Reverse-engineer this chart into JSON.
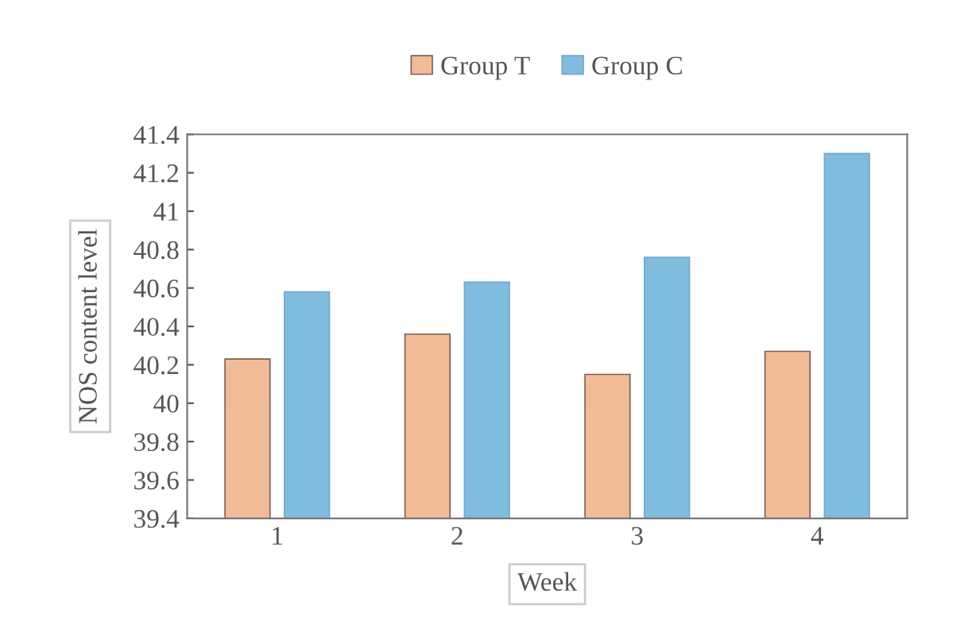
{
  "chart_data": {
    "type": "bar",
    "xlabel": "Week",
    "ylabel": "NOS content level",
    "categories": [
      "1",
      "2",
      "3",
      "4"
    ],
    "series": [
      {
        "name": "Group T",
        "color": "#f2bb98",
        "values": [
          40.23,
          40.36,
          40.15,
          40.27
        ]
      },
      {
        "name": "Group C",
        "color": "#80bcde",
        "values": [
          40.58,
          40.63,
          40.76,
          41.3
        ]
      }
    ],
    "ylim": [
      39.4,
      41.4
    ],
    "yticks": [
      {
        "value": 39.4,
        "label": "39.4"
      },
      {
        "value": 39.6,
        "label": "39.6"
      },
      {
        "value": 39.8,
        "label": "39.8"
      },
      40,
      {
        "value": 40.2,
        "label": "40.2"
      },
      {
        "value": 40.4,
        "label": "40.4"
      },
      {
        "value": 40.6,
        "label": "40.6"
      },
      {
        "value": 40.8,
        "label": "40.8"
      },
      41,
      {
        "value": 41.2,
        "label": "41.2"
      },
      {
        "value": 41.4,
        "label": "41.4"
      }
    ],
    "grid": false,
    "legend": "top"
  }
}
